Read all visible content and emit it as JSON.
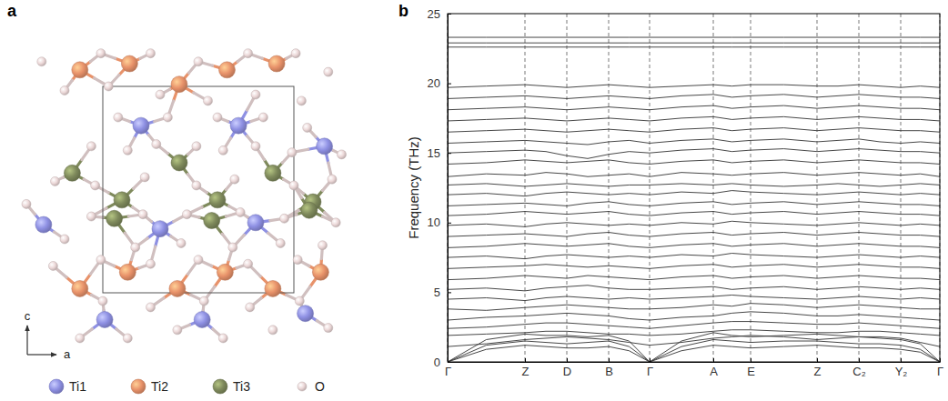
{
  "diagram": {
    "panel_label": "a",
    "axes": {
      "vertical": "c",
      "horizontal": "a"
    },
    "species": [
      {
        "label": "Ti1",
        "color": "#8e90e3",
        "positions": [
          [
            0.2,
            0.81
          ],
          [
            0.71,
            0.81
          ],
          [
            1.16,
            0.71
          ],
          [
            -0.31,
            0.33
          ],
          [
            0.3,
            0.31
          ],
          [
            0.8,
            0.34
          ],
          [
            0.01,
            -0.13
          ],
          [
            0.52,
            -0.13
          ],
          [
            1.06,
            -0.1
          ]
        ]
      },
      {
        "label": "Ti2",
        "color": "#e8926a",
        "positions": [
          [
            -0.12,
            1.08
          ],
          [
            0.14,
            1.11
          ],
          [
            0.4,
            1.01
          ],
          [
            0.65,
            1.08
          ],
          [
            0.91,
            1.11
          ],
          [
            0.13,
            0.1
          ],
          [
            0.39,
            0.02
          ],
          [
            0.64,
            0.1
          ],
          [
            0.89,
            0.02
          ],
          [
            -0.12,
            0.02
          ],
          [
            1.14,
            0.1
          ]
        ]
      },
      {
        "label": "Ti3",
        "color": "#7f8a5c",
        "positions": [
          [
            -0.16,
            0.58
          ],
          [
            0.4,
            0.63
          ],
          [
            0.89,
            0.58
          ],
          [
            0.1,
            0.45
          ],
          [
            0.6,
            0.45
          ],
          [
            1.1,
            0.44
          ],
          [
            0.06,
            0.36
          ],
          [
            0.57,
            0.35
          ],
          [
            1.08,
            0.4
          ]
        ]
      },
      {
        "label": "O",
        "color": "#ecd8d8",
        "positions": [
          [
            -0.32,
            1.12
          ],
          [
            -0.2,
            0.98
          ],
          [
            -0.01,
            1.16
          ],
          [
            0.03,
            1.0
          ],
          [
            0.25,
            1.16
          ],
          [
            0.3,
            0.96
          ],
          [
            0.5,
            1.12
          ],
          [
            0.55,
            0.93
          ],
          [
            0.76,
            1.16
          ],
          [
            0.8,
            0.96
          ],
          [
            1.01,
            1.16
          ],
          [
            1.04,
            0.93
          ],
          [
            1.18,
            1.07
          ],
          [
            0.08,
            0.85
          ],
          [
            0.34,
            0.85
          ],
          [
            0.6,
            0.85
          ],
          [
            0.84,
            0.85
          ],
          [
            1.07,
            0.8
          ],
          [
            1.25,
            0.67
          ],
          [
            -0.06,
            0.71
          ],
          [
            0.13,
            0.69
          ],
          [
            0.28,
            0.72
          ],
          [
            0.49,
            0.71
          ],
          [
            0.63,
            0.69
          ],
          [
            0.8,
            0.71
          ],
          [
            0.99,
            0.68
          ],
          [
            -0.25,
            0.54
          ],
          [
            -0.04,
            0.52
          ],
          [
            0.22,
            0.56
          ],
          [
            0.49,
            0.52
          ],
          [
            0.69,
            0.55
          ],
          [
            1.0,
            0.52
          ],
          [
            1.2,
            0.55
          ],
          [
            -0.06,
            0.37
          ],
          [
            0.21,
            0.38
          ],
          [
            0.44,
            0.38
          ],
          [
            0.72,
            0.39
          ],
          [
            0.95,
            0.36
          ],
          [
            1.22,
            0.34
          ],
          [
            -0.4,
            0.43
          ],
          [
            -0.2,
            0.26
          ],
          [
            0.17,
            0.22
          ],
          [
            0.41,
            0.24
          ],
          [
            0.68,
            0.22
          ],
          [
            0.93,
            0.24
          ],
          [
            1.15,
            0.23
          ],
          [
            -0.26,
            0.13
          ],
          [
            -0.01,
            0.16
          ],
          [
            0.25,
            0.14
          ],
          [
            0.5,
            0.16
          ],
          [
            0.76,
            0.14
          ],
          [
            1.02,
            0.16
          ],
          [
            0.0,
            -0.04
          ],
          [
            0.25,
            -0.07
          ],
          [
            0.53,
            -0.04
          ],
          [
            0.77,
            -0.07
          ],
          [
            1.03,
            -0.04
          ],
          [
            -0.12,
            -0.22
          ],
          [
            0.13,
            -0.22
          ],
          [
            0.39,
            -0.18
          ],
          [
            0.63,
            -0.22
          ],
          [
            0.89,
            -0.18
          ],
          [
            1.18,
            -0.17
          ]
        ]
      }
    ]
  },
  "chart_data": {
    "type": "line",
    "panel_label": "b",
    "y_label": "Frequency (THz)",
    "color": "#333333",
    "grid": "x",
    "xlim": [
      0,
      5.41
    ],
    "ylim": [
      0,
      25
    ],
    "yticks": [
      0,
      5,
      10,
      15,
      20,
      25
    ],
    "xticks": [
      {
        "value": 0,
        "label": "Γ"
      },
      {
        "value": 0.85,
        "label": "Z"
      },
      {
        "value": 1.31,
        "label": "D"
      },
      {
        "value": 1.77,
        "label": "B"
      },
      {
        "value": 2.22,
        "label": "Γ"
      },
      {
        "value": 2.92,
        "label": "A"
      },
      {
        "value": 3.33,
        "label": "E"
      },
      {
        "value": 4.06,
        "label": "Z"
      },
      {
        "value": 4.52,
        "label": "C₂"
      },
      {
        "value": 4.98,
        "label": "Y₂"
      },
      {
        "value": 5.41,
        "label": "Γ"
      }
    ],
    "x": [
      0,
      0.425,
      0.85,
      1.08,
      1.31,
      1.54,
      1.77,
      1.995,
      2.22,
      2.57,
      2.92,
      3.125,
      3.33,
      3.695,
      4.06,
      4.29,
      4.52,
      4.75,
      4.98,
      5.195,
      5.41
    ],
    "series": [
      {
        "values": [
          0,
          0.9,
          1.2,
          1.1,
          1.0,
          1.0,
          1.1,
          0.8,
          0,
          0.8,
          1.2,
          1.1,
          1.0,
          1.1,
          1.2,
          1.1,
          1.0,
          1.0,
          0.9,
          0.7,
          0
        ]
      },
      {
        "values": [
          0,
          1.2,
          1.5,
          1.4,
          1.3,
          1.4,
          1.5,
          1.1,
          0,
          1.1,
          1.6,
          1.5,
          1.4,
          1.5,
          1.5,
          1.4,
          1.3,
          1.3,
          1.2,
          0.9,
          0
        ]
      },
      {
        "values": [
          0,
          1.6,
          2.0,
          1.9,
          1.9,
          1.8,
          1.9,
          1.5,
          0,
          1.5,
          2.1,
          1.9,
          1.8,
          1.9,
          2.0,
          1.9,
          1.8,
          1.7,
          1.6,
          1.3,
          0
        ]
      },
      {
        "values": [
          1.1,
          1.3,
          1.6,
          1.7,
          1.8,
          1.7,
          1.6,
          1.4,
          1.2,
          1.4,
          1.7,
          1.8,
          1.9,
          1.8,
          1.6,
          1.7,
          1.8,
          1.8,
          1.7,
          1.4,
          1.1
        ]
      },
      {
        "values": [
          1.9,
          2.0,
          2.1,
          2.2,
          2.2,
          2.1,
          2.0,
          2.0,
          1.9,
          2.0,
          2.2,
          2.3,
          2.3,
          2.2,
          2.1,
          2.1,
          2.2,
          2.2,
          2.1,
          2.0,
          1.9
        ]
      },
      {
        "values": [
          2.4,
          2.5,
          2.7,
          2.8,
          2.8,
          2.7,
          2.6,
          2.5,
          2.4,
          2.6,
          2.8,
          2.9,
          2.9,
          2.8,
          2.7,
          2.7,
          2.8,
          2.7,
          2.6,
          2.5,
          2.4
        ]
      },
      {
        "values": [
          3.0,
          3.2,
          3.3,
          3.4,
          3.5,
          3.4,
          3.3,
          3.1,
          3.0,
          3.2,
          3.3,
          3.5,
          3.6,
          3.5,
          3.3,
          3.3,
          3.4,
          3.3,
          3.2,
          3.1,
          3.0
        ]
      },
      {
        "values": [
          3.8,
          3.7,
          3.9,
          4.0,
          4.1,
          4.0,
          3.9,
          3.8,
          3.8,
          3.9,
          4.1,
          4.0,
          4.2,
          4.1,
          3.9,
          4.0,
          4.1,
          4.0,
          3.9,
          3.8,
          3.8
        ]
      },
      {
        "values": [
          4.5,
          4.6,
          4.4,
          4.6,
          4.7,
          4.6,
          4.5,
          4.6,
          4.5,
          4.6,
          4.7,
          4.8,
          4.7,
          4.6,
          4.5,
          4.6,
          4.7,
          4.6,
          4.5,
          4.6,
          4.5
        ]
      },
      {
        "values": [
          5.2,
          5.3,
          5.1,
          5.3,
          5.4,
          5.5,
          5.3,
          5.2,
          5.2,
          5.3,
          5.4,
          5.2,
          5.3,
          5.4,
          5.2,
          5.3,
          5.4,
          5.3,
          5.2,
          5.3,
          5.2
        ]
      },
      {
        "values": [
          5.9,
          6.0,
          6.2,
          6.1,
          6.0,
          6.2,
          6.1,
          6.0,
          5.9,
          6.1,
          6.2,
          6.0,
          6.1,
          6.2,
          6.0,
          6.1,
          6.2,
          6.1,
          6.0,
          6.0,
          5.9
        ]
      },
      {
        "values": [
          6.7,
          6.8,
          6.9,
          7.0,
          6.9,
          6.8,
          6.9,
          6.8,
          6.7,
          6.9,
          7.0,
          6.8,
          6.9,
          7.0,
          6.8,
          6.9,
          7.0,
          6.9,
          6.8,
          6.8,
          6.7
        ]
      },
      {
        "values": [
          7.5,
          7.6,
          7.4,
          7.6,
          7.7,
          7.6,
          7.5,
          7.6,
          7.5,
          7.7,
          7.6,
          7.8,
          7.7,
          7.6,
          7.5,
          7.6,
          7.7,
          7.6,
          7.5,
          7.6,
          7.5
        ]
      },
      {
        "values": [
          8.2,
          8.3,
          8.5,
          8.4,
          8.3,
          8.4,
          8.5,
          8.3,
          8.2,
          8.4,
          8.5,
          8.3,
          8.4,
          8.5,
          8.3,
          8.4,
          8.5,
          8.4,
          8.3,
          8.3,
          8.2
        ]
      },
      {
        "values": [
          9.0,
          9.1,
          9.2,
          9.1,
          9.0,
          9.2,
          9.3,
          9.1,
          9.0,
          9.2,
          9.3,
          9.1,
          9.2,
          9.3,
          9.1,
          9.2,
          9.3,
          9.2,
          9.1,
          9.1,
          9.0
        ]
      },
      {
        "values": [
          9.8,
          9.9,
          9.7,
          9.9,
          10.0,
          9.9,
          9.8,
          9.9,
          9.8,
          10.0,
          9.9,
          10.1,
          10.0,
          9.9,
          9.8,
          9.9,
          10.0,
          9.9,
          9.8,
          9.9,
          9.8
        ]
      },
      {
        "values": [
          10.5,
          10.6,
          10.8,
          10.7,
          10.6,
          10.7,
          10.8,
          10.6,
          10.5,
          10.7,
          10.8,
          10.6,
          10.7,
          10.8,
          10.6,
          10.7,
          10.8,
          10.7,
          10.6,
          10.6,
          10.5
        ]
      },
      {
        "values": [
          11.2,
          11.3,
          11.4,
          11.3,
          11.2,
          11.4,
          11.5,
          11.3,
          11.2,
          11.4,
          11.5,
          11.3,
          11.4,
          11.5,
          11.3,
          11.4,
          11.5,
          11.4,
          11.3,
          11.3,
          11.2
        ]
      },
      {
        "values": [
          12.0,
          12.1,
          11.9,
          12.1,
          12.2,
          12.1,
          12.0,
          12.1,
          12.0,
          12.2,
          12.1,
          12.3,
          12.2,
          12.1,
          12.0,
          12.1,
          12.2,
          12.1,
          12.0,
          12.1,
          12.0
        ]
      },
      {
        "values": [
          12.7,
          12.8,
          12.6,
          12.7,
          12.8,
          12.7,
          12.6,
          12.7,
          12.7,
          12.8,
          12.7,
          12.8,
          12.7,
          12.6,
          12.7,
          12.8,
          12.7,
          12.6,
          12.7,
          12.8,
          12.7
        ]
      },
      {
        "values": [
          13.3,
          13.5,
          13.4,
          13.6,
          13.5,
          13.3,
          13.4,
          13.5,
          13.3,
          13.6,
          13.5,
          13.4,
          13.5,
          13.6,
          13.4,
          13.5,
          13.6,
          13.5,
          13.4,
          13.5,
          13.3
        ]
      },
      {
        "values": [
          14.2,
          14.3,
          14.5,
          14.4,
          14.3,
          14.4,
          14.5,
          14.3,
          14.2,
          14.4,
          14.5,
          14.3,
          14.4,
          14.5,
          14.3,
          14.4,
          14.5,
          14.4,
          14.3,
          14.3,
          14.2
        ]
      },
      {
        "values": [
          15.0,
          15.1,
          15.2,
          15.1,
          14.8,
          14.6,
          14.9,
          15.1,
          15.0,
          15.2,
          15.3,
          15.1,
          15.2,
          15.3,
          15.1,
          15.2,
          15.3,
          15.2,
          15.1,
          15.1,
          15.0
        ]
      },
      {
        "values": [
          15.7,
          15.8,
          15.9,
          15.8,
          15.7,
          15.6,
          15.8,
          15.9,
          15.7,
          15.9,
          16.0,
          15.8,
          15.9,
          16.0,
          15.8,
          15.9,
          16.0,
          15.8,
          15.7,
          15.8,
          15.7
        ]
      },
      {
        "values": [
          16.5,
          16.6,
          16.7,
          16.6,
          16.5,
          16.6,
          16.7,
          16.6,
          16.5,
          16.7,
          16.8,
          16.6,
          16.7,
          16.8,
          16.6,
          16.7,
          16.8,
          16.7,
          16.6,
          16.6,
          16.5
        ]
      },
      {
        "values": [
          17.3,
          17.4,
          17.5,
          17.4,
          17.3,
          17.4,
          17.5,
          17.4,
          17.3,
          17.5,
          17.6,
          17.4,
          17.5,
          17.6,
          17.4,
          17.5,
          17.6,
          17.5,
          17.4,
          17.4,
          17.3
        ]
      },
      {
        "values": [
          18.1,
          18.2,
          18.3,
          18.2,
          18.1,
          18.2,
          18.3,
          18.2,
          18.1,
          18.3,
          18.4,
          18.2,
          18.3,
          18.4,
          18.2,
          18.3,
          18.4,
          18.3,
          18.2,
          18.2,
          18.1
        ]
      },
      {
        "values": [
          18.9,
          19.0,
          19.1,
          19.0,
          18.9,
          19.0,
          19.1,
          19.0,
          18.9,
          19.1,
          19.2,
          19.0,
          19.1,
          19.2,
          19.0,
          19.1,
          19.2,
          19.1,
          19.0,
          19.0,
          18.9
        ]
      },
      {
        "values": [
          19.7,
          19.8,
          19.9,
          19.8,
          19.7,
          19.8,
          19.9,
          19.8,
          19.7,
          19.8,
          19.9,
          19.8,
          19.9,
          19.9,
          19.8,
          19.8,
          19.9,
          19.8,
          19.7,
          19.8,
          19.7
        ]
      },
      {
        "values": [
          22.6,
          22.6,
          22.6,
          22.6,
          22.6,
          22.6,
          22.6,
          22.6,
          22.6,
          22.6,
          22.6,
          22.6,
          22.6,
          22.6,
          22.6,
          22.6,
          22.6,
          22.6,
          22.6,
          22.6,
          22.6
        ]
      },
      {
        "values": [
          22.9,
          22.9,
          22.9,
          22.9,
          22.9,
          22.9,
          22.9,
          22.9,
          22.9,
          22.9,
          22.9,
          22.9,
          22.9,
          22.9,
          22.9,
          22.9,
          22.9,
          22.9,
          22.9,
          22.9,
          22.9
        ]
      },
      {
        "values": [
          23.3,
          23.3,
          23.3,
          23.3,
          23.3,
          23.3,
          23.3,
          23.3,
          23.3,
          23.3,
          23.3,
          23.3,
          23.3,
          23.3,
          23.3,
          23.3,
          23.3,
          23.3,
          23.3,
          23.3,
          23.3
        ]
      }
    ]
  }
}
